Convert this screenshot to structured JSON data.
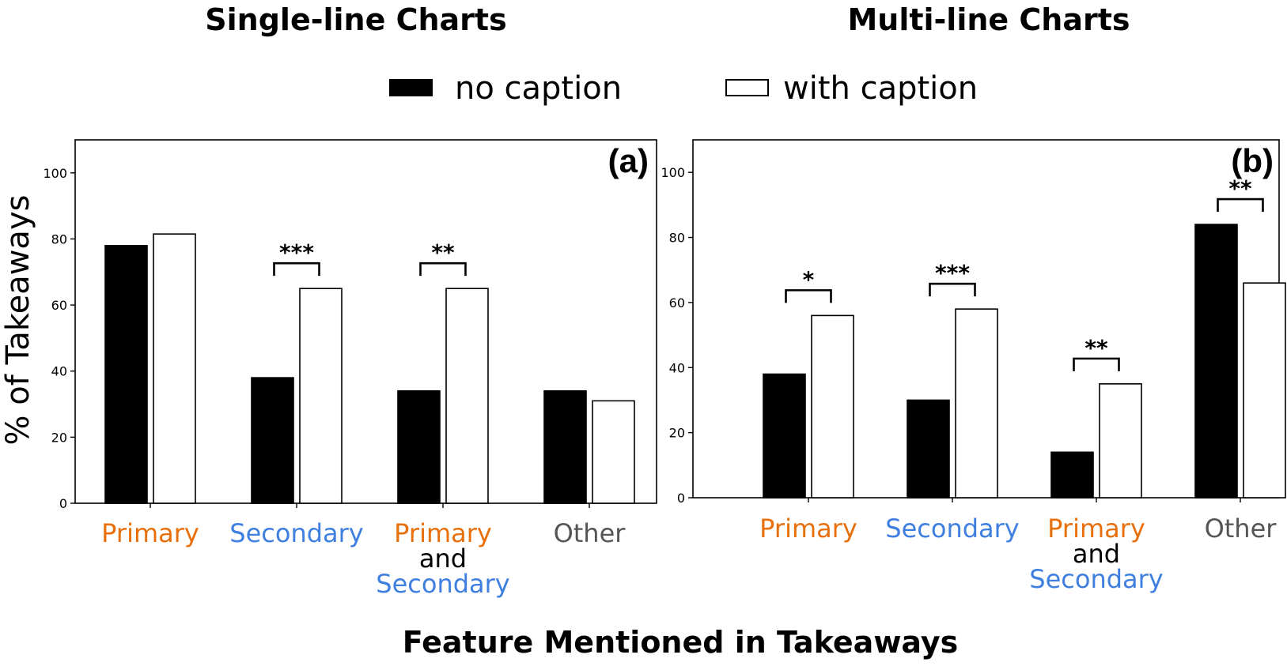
{
  "titles": {
    "left": "Single-line Charts",
    "right": "Multi-line Charts"
  },
  "legend": {
    "no_caption": "no caption",
    "with_caption": "with caption"
  },
  "ylabel": "% of Takeaways",
  "xlabel": "Feature Mentioned in Takeaways",
  "colors": {
    "primary": "#e8700c",
    "secondary": "#3f7fe0",
    "other": "#555555",
    "and": "#000000",
    "no_caption_fill": "#000000",
    "with_caption_fill": "#ffffff"
  },
  "chart_data": [
    {
      "type": "bar",
      "panel": "(a)",
      "title": "Single-line Charts",
      "categories": [
        [
          "Primary"
        ],
        [
          "Secondary"
        ],
        [
          "Primary",
          "and",
          "Secondary"
        ],
        [
          "Other"
        ]
      ],
      "category_colors": [
        [
          "primary"
        ],
        [
          "secondary"
        ],
        [
          "primary",
          "and",
          "secondary"
        ],
        [
          "other"
        ]
      ],
      "series": [
        {
          "name": "no caption",
          "values": [
            78,
            38,
            34,
            34
          ]
        },
        {
          "name": "with caption",
          "values": [
            81.5,
            65,
            65,
            31
          ]
        }
      ],
      "significance": [
        "",
        "***",
        "**",
        ""
      ],
      "ylim": [
        0,
        110
      ],
      "yticks": [
        0,
        20,
        40,
        60,
        80,
        100
      ],
      "ylabel": "% of Takeaways",
      "xlabel": "Feature Mentioned in Takeaways"
    },
    {
      "type": "bar",
      "panel": "(b)",
      "title": "Multi-line Charts",
      "categories": [
        [
          "Primary"
        ],
        [
          "Secondary"
        ],
        [
          "Primary",
          "and",
          "Secondary"
        ],
        [
          "Other"
        ]
      ],
      "category_colors": [
        [
          "primary"
        ],
        [
          "secondary"
        ],
        [
          "primary",
          "and",
          "secondary"
        ],
        [
          "other"
        ]
      ],
      "series": [
        {
          "name": "no caption",
          "values": [
            38,
            30,
            14,
            84
          ]
        },
        {
          "name": "with caption",
          "values": [
            56,
            58,
            35,
            66
          ]
        }
      ],
      "significance": [
        "*",
        "***",
        "**",
        "**"
      ],
      "ylim": [
        0,
        110
      ],
      "yticks": [
        0,
        20,
        40,
        60,
        80,
        100
      ],
      "ylabel": "",
      "xlabel": "Feature Mentioned in Takeaways"
    }
  ]
}
